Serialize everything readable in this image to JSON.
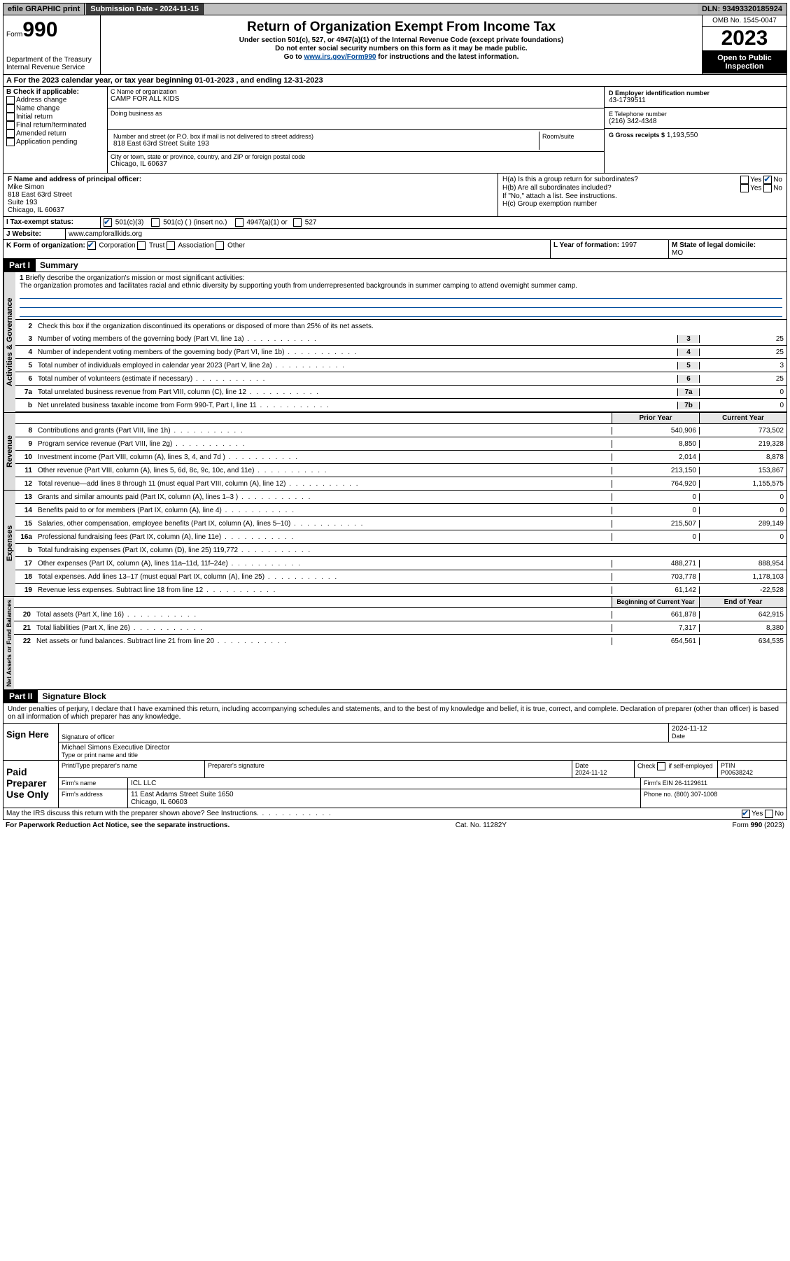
{
  "topbar": {
    "efile": "efile GRAPHIC print",
    "subDateLabel": "Submission Date - 2024-11-15",
    "dln": "DLN: 93493320185924"
  },
  "header": {
    "formWord": "Form",
    "formNo": "990",
    "dept": "Department of the Treasury\nInternal Revenue Service",
    "title": "Return of Organization Exempt From Income Tax",
    "sub1": "Under section 501(c), 527, or 4947(a)(1) of the Internal Revenue Code (except private foundations)",
    "sub2": "Do not enter social security numbers on this form as it may be made public.",
    "go": "Go to ",
    "goUrl": "www.irs.gov/Form990",
    "go2": " for instructions and the latest information.",
    "omb": "OMB No. 1545-0047",
    "year": "2023",
    "openPub": "Open to Public Inspection"
  },
  "lineA": "A For the 2023 calendar year, or tax year beginning 01-01-2023   , and ending 12-31-2023",
  "colB": {
    "title": "B Check if applicable:",
    "opts": [
      "Address change",
      "Name change",
      "Initial return",
      "Final return/terminated",
      "Amended return",
      "Application pending"
    ]
  },
  "colC": {
    "nameLabel": "C Name of organization",
    "name": "CAMP FOR ALL KIDS",
    "dba": "Doing business as",
    "addrLabel": "Number and street (or P.O. box if mail is not delivered to street address)",
    "roomLabel": "Room/suite",
    "addr": "818 East 63rd Street Suite 193",
    "cityLabel": "City or town, state or province, country, and ZIP or foreign postal code",
    "city": "Chicago, IL  60637"
  },
  "colD": {
    "einLabel": "D Employer identification number",
    "ein": "43-1739511",
    "telLabel": "E Telephone number",
    "tel": "(216) 342-4348",
    "grossLabel": "G Gross receipts $",
    "gross": "1,193,550"
  },
  "fSection": {
    "fLabel": "F Name and address of principal officer:",
    "fName": "Mike Simon",
    "fAddr1": "818 East 63rd Street",
    "fAddr2": "Suite 193",
    "fAddr3": "Chicago, IL  60637",
    "haLabel": "H(a) Is this a group return for subordinates?",
    "hbLabel": "H(b) Are all subordinates included?",
    "hbNote": "If \"No,\" attach a list. See instructions.",
    "hcLabel": "H(c) Group exemption number",
    "yes": "Yes",
    "no": "No"
  },
  "iRow": {
    "label": "I    Tax-exempt status:",
    "opt1": "501(c)(3)",
    "opt2": "501(c) (  ) (insert no.)",
    "opt3": "4947(a)(1) or",
    "opt4": "527"
  },
  "jRow": {
    "label": "J   Website:",
    "val": "www.campforallkids.org"
  },
  "kRow": {
    "label": "K Form of organization:",
    "corp": "Corporation",
    "trust": "Trust",
    "assoc": "Association",
    "other": "Other",
    "lLabel": "L Year of formation: ",
    "lVal": "1997",
    "mLabel": "M State of legal domicile: ",
    "mVal": "MO"
  },
  "part1": {
    "hdr": "Part I",
    "title": "Summary",
    "line1": "Briefly describe the organization's mission or most significant activities:",
    "mission": "The organization promotes and facilitates racial and ethnic diversity by supporting youth from underrepresented backgrounds in summer camping to attend overnight summer camp.",
    "line2": "Check this box      if the organization discontinued its operations or disposed of more than 25% of its net assets.",
    "lines": [
      {
        "n": "3",
        "d": "Number of voting members of the governing body (Part VI, line 1a)",
        "b": "3",
        "v": "25"
      },
      {
        "n": "4",
        "d": "Number of independent voting members of the governing body (Part VI, line 1b)",
        "b": "4",
        "v": "25"
      },
      {
        "n": "5",
        "d": "Total number of individuals employed in calendar year 2023 (Part V, line 2a)",
        "b": "5",
        "v": "3"
      },
      {
        "n": "6",
        "d": "Total number of volunteers (estimate if necessary)",
        "b": "6",
        "v": "25"
      },
      {
        "n": "7a",
        "d": "Total unrelated business revenue from Part VIII, column (C), line 12",
        "b": "7a",
        "v": "0"
      },
      {
        "n": "b",
        "d": "Net unrelated business taxable income from Form 990-T, Part I, line 11",
        "b": "7b",
        "v": "0"
      }
    ],
    "govLabel": "Activities & Governance",
    "priorYear": "Prior Year",
    "currentYear": "Current Year",
    "revLabel": "Revenue",
    "revLines": [
      {
        "n": "8",
        "d": "Contributions and grants (Part VIII, line 1h)",
        "p": "540,906",
        "c": "773,502"
      },
      {
        "n": "9",
        "d": "Program service revenue (Part VIII, line 2g)",
        "p": "8,850",
        "c": "219,328"
      },
      {
        "n": "10",
        "d": "Investment income (Part VIII, column (A), lines 3, 4, and 7d )",
        "p": "2,014",
        "c": "8,878"
      },
      {
        "n": "11",
        "d": "Other revenue (Part VIII, column (A), lines 5, 6d, 8c, 9c, 10c, and 11e)",
        "p": "213,150",
        "c": "153,867"
      },
      {
        "n": "12",
        "d": "Total revenue—add lines 8 through 11 (must equal Part VIII, column (A), line 12)",
        "p": "764,920",
        "c": "1,155,575"
      }
    ],
    "expLabel": "Expenses",
    "expLines": [
      {
        "n": "13",
        "d": "Grants and similar amounts paid (Part IX, column (A), lines 1–3 )",
        "p": "0",
        "c": "0"
      },
      {
        "n": "14",
        "d": "Benefits paid to or for members (Part IX, column (A), line 4)",
        "p": "0",
        "c": "0"
      },
      {
        "n": "15",
        "d": "Salaries, other compensation, employee benefits (Part IX, column (A), lines 5–10)",
        "p": "215,507",
        "c": "289,149"
      },
      {
        "n": "16a",
        "d": "Professional fundraising fees (Part IX, column (A), line 11e)",
        "p": "0",
        "c": "0"
      },
      {
        "n": "b",
        "d": "Total fundraising expenses (Part IX, column (D), line 25) 119,772",
        "p": "",
        "c": ""
      },
      {
        "n": "17",
        "d": "Other expenses (Part IX, column (A), lines 11a–11d, 11f–24e)",
        "p": "488,271",
        "c": "888,954"
      },
      {
        "n": "18",
        "d": "Total expenses. Add lines 13–17 (must equal Part IX, column (A), line 25)",
        "p": "703,778",
        "c": "1,178,103"
      },
      {
        "n": "19",
        "d": "Revenue less expenses. Subtract line 18 from line 12",
        "p": "61,142",
        "c": "-22,528"
      }
    ],
    "naLabel": "Net Assets or Fund Balances",
    "begYear": "Beginning of Current Year",
    "endYear": "End of Year",
    "naLines": [
      {
        "n": "20",
        "d": "Total assets (Part X, line 16)",
        "p": "661,878",
        "c": "642,915"
      },
      {
        "n": "21",
        "d": "Total liabilities (Part X, line 26)",
        "p": "7,317",
        "c": "8,380"
      },
      {
        "n": "22",
        "d": "Net assets or fund balances. Subtract line 21 from line 20",
        "p": "654,561",
        "c": "634,535"
      }
    ]
  },
  "part2": {
    "hdr": "Part II",
    "title": "Signature Block",
    "decl": "Under penalties of perjury, I declare that I have examined this return, including accompanying schedules and statements, and to the best of my knowledge and belief, it is true, correct, and complete. Declaration of preparer (other than officer) is based on all information of which preparer has any knowledge."
  },
  "sign": {
    "signHere": "Sign Here",
    "sigOfficer": "Signature of officer",
    "officerName": "Michael Simons  Executive Director",
    "typeName": "Type or print name and title",
    "date": "Date",
    "dateVal": "2024-11-12"
  },
  "paid": {
    "label": "Paid Preparer Use Only",
    "prepName": "Print/Type preparer's name",
    "prepSig": "Preparer's signature",
    "dateVal": "2024-11-12",
    "checkIf": "Check       if self-employed",
    "ptin": "PTIN",
    "ptinVal": "P00638242",
    "firmName": "Firm's name",
    "firmNameVal": "ICL LLC",
    "firmEin": "Firm's EIN",
    "firmEinVal": "26-1129611",
    "firmAddr": "Firm's address",
    "firmAddrVal": "11 East Adams Street Suite 1650",
    "firmCity": "Chicago, IL  60603",
    "phone": "Phone no.",
    "phoneVal": "(800) 307-1008"
  },
  "footer": {
    "discuss": "May the IRS discuss this return with the preparer shown above? See Instructions.",
    "yes": "Yes",
    "no": "No",
    "paperwork": "For Paperwork Reduction Act Notice, see the separate instructions.",
    "cat": "Cat. No. 11282Y",
    "form": "Form 990 (2023)"
  }
}
